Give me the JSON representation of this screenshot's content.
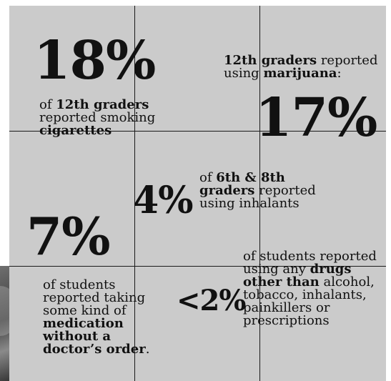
{
  "stats": [
    {
      "figure": "18%",
      "pre": "of ",
      "bold1": "12th graders",
      "mid": " reported smoking ",
      "bold2": "cigarettes",
      "post": ""
    },
    {
      "figure": "17%",
      "bold1": "12th graders",
      "mid": " reported using ",
      "bold2": "marijuana",
      "post": ":"
    },
    {
      "figure": "4%",
      "pre": "of ",
      "bold1": "6th & 8th graders",
      "mid": " reported using inhalants"
    },
    {
      "figure": "7%",
      "pre": "of students reported taking some kind of ",
      "bold1": "medication without a doctor’s order",
      "post": "."
    },
    {
      "figure": "<2%",
      "pre": "of students reported using any ",
      "bold1": "drugs other than",
      "mid": " alcohol, tobacco, inhalants, painkillers or prescriptions"
    }
  ],
  "colors": {
    "panel": "#cbcbcb",
    "ink": "#111111",
    "grid": "#1a1a1a"
  }
}
